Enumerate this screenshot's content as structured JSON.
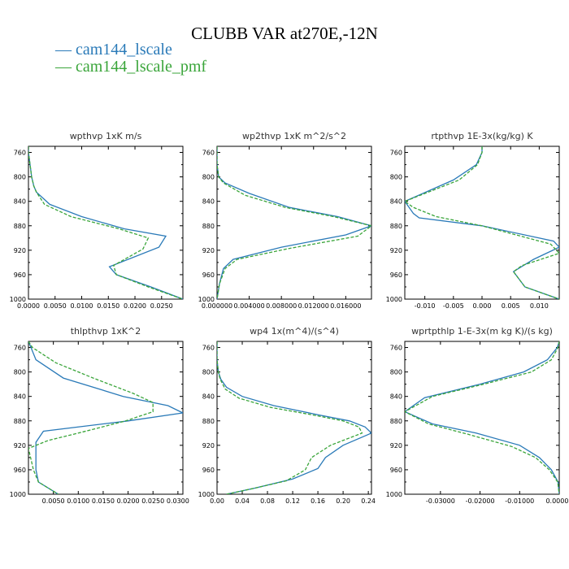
{
  "title": "CLUBB VAR at270E,-12N",
  "legend": [
    {
      "name": "cam144_lscale",
      "color": "#2a7ab8"
    },
    {
      "name": "cam144_lscale_pmf",
      "color": "#3aa53a"
    }
  ],
  "chart_data": [
    {
      "type": "line",
      "title": "wpthvp   1xK m/s",
      "ylim": [
        1000,
        750
      ],
      "yticks": [
        "760",
        "800",
        "840",
        "880",
        "920",
        "960",
        "1000"
      ],
      "xlim": [
        0.0,
        0.029
      ],
      "xticks": [
        "0.0000",
        "0.0050",
        "0.0100",
        "0.0150",
        "0.0200",
        "0.0250"
      ],
      "xtick_values": [
        0.0,
        0.005,
        0.01,
        0.015,
        0.02,
        0.025
      ],
      "series": [
        {
          "name": "cam144_lscale",
          "y": [
            750,
            760,
            780,
            800,
            815,
            825,
            845,
            865,
            885,
            897,
            915,
            947,
            960,
            980,
            1000
          ],
          "values": [
            0.0,
            0.0,
            0.0003,
            0.0006,
            0.001,
            0.0015,
            0.004,
            0.01,
            0.018,
            0.0258,
            0.0245,
            0.0152,
            0.0165,
            0.023,
            0.029
          ]
        },
        {
          "name": "cam144_lscale_pmf",
          "y": [
            750,
            760,
            780,
            800,
            815,
            825,
            845,
            865,
            885,
            900,
            918,
            945,
            960,
            980,
            1000
          ],
          "values": [
            0.0,
            0.0,
            0.0003,
            0.0006,
            0.001,
            0.0015,
            0.003,
            0.008,
            0.017,
            0.0225,
            0.0215,
            0.016,
            0.0165,
            0.0225,
            0.029
          ]
        }
      ]
    },
    {
      "type": "line",
      "title": "wp2thvp   1xK m^2/s^2",
      "ylim": [
        1000,
        750
      ],
      "yticks": [
        "760",
        "800",
        "840",
        "880",
        "920",
        "960",
        "1000"
      ],
      "xlim": [
        0.0,
        0.0192
      ],
      "xticks": [
        "0.000000",
        "0.004000",
        "0.008000",
        "0.012000",
        "0.016000"
      ],
      "xtick_values": [
        0.0,
        0.004,
        0.008,
        0.012,
        0.016
      ],
      "series": [
        {
          "name": "cam144_lscale",
          "y": [
            750,
            780,
            800,
            810,
            827,
            850,
            865,
            880,
            895,
            915,
            935,
            950,
            975,
            1000
          ],
          "values": [
            0.0,
            0.0,
            0.0002,
            0.001,
            0.004,
            0.009,
            0.015,
            0.0192,
            0.016,
            0.008,
            0.002,
            0.0008,
            0.0003,
            0.0
          ]
        },
        {
          "name": "cam144_lscale_pmf",
          "y": [
            750,
            780,
            800,
            810,
            830,
            850,
            865,
            880,
            897,
            917,
            935,
            950,
            975,
            1000
          ],
          "values": [
            0.0,
            0.0,
            0.0002,
            0.0008,
            0.0035,
            0.0085,
            0.0145,
            0.0192,
            0.0175,
            0.009,
            0.0025,
            0.001,
            0.0003,
            0.0
          ]
        }
      ]
    },
    {
      "type": "line",
      "title": "rtpthvp   1E-3x(kg/kg) K",
      "ylim": [
        1000,
        750
      ],
      "yticks": [
        "760",
        "800",
        "840",
        "880",
        "920",
        "960",
        "1000"
      ],
      "xlim": [
        -0.0135,
        0.0135
      ],
      "xticks": [
        "-0.010",
        "-0.005",
        "0.000",
        "0.005",
        "0.010"
      ],
      "xtick_values": [
        -0.01,
        -0.005,
        0.0,
        0.005,
        0.01
      ],
      "series": [
        {
          "name": "cam144_lscale",
          "y": [
            750,
            760,
            780,
            805,
            840,
            860,
            867,
            880,
            905,
            915,
            935,
            955,
            980,
            1000
          ],
          "values": [
            0.0,
            0.0,
            -0.001,
            -0.005,
            -0.0135,
            -0.012,
            -0.011,
            0.0,
            0.0125,
            0.0135,
            0.009,
            0.0055,
            0.0075,
            0.0135
          ]
        },
        {
          "name": "cam144_lscale_pmf",
          "y": [
            750,
            760,
            780,
            805,
            840,
            850,
            865,
            880,
            910,
            925,
            945,
            955,
            980,
            1000
          ],
          "values": [
            0.0,
            0.0,
            -0.0008,
            -0.004,
            -0.0135,
            -0.012,
            -0.008,
            0.0,
            0.012,
            0.0135,
            0.007,
            0.0055,
            0.0075,
            0.0135
          ]
        }
      ]
    },
    {
      "type": "line",
      "title": "thlpthvp   1xK^2",
      "ylim": [
        1000,
        750
      ],
      "yticks": [
        "760",
        "800",
        "840",
        "880",
        "920",
        "960",
        "1000"
      ],
      "xlim": [
        0.0,
        0.031
      ],
      "xticks": [
        "0.0050",
        "0.0100",
        "0.0150",
        "0.0200",
        "0.0250",
        "0.0300"
      ],
      "xtick_values": [
        0.005,
        0.01,
        0.015,
        0.02,
        0.025,
        0.03
      ],
      "series": [
        {
          "name": "cam144_lscale",
          "y": [
            750,
            760,
            780,
            810,
            840,
            855,
            867,
            880,
            897,
            915,
            930,
            960,
            980,
            1000
          ],
          "values": [
            0.0,
            0.0005,
            0.0015,
            0.007,
            0.019,
            0.028,
            0.031,
            0.02,
            0.003,
            0.0015,
            0.0015,
            0.0015,
            0.002,
            0.006
          ]
        },
        {
          "name": "cam144_lscale_pmf",
          "y": [
            750,
            760,
            785,
            810,
            835,
            850,
            865,
            880,
            900,
            912,
            925,
            960,
            980,
            1000
          ],
          "values": [
            0.0,
            0.0008,
            0.0055,
            0.013,
            0.021,
            0.025,
            0.025,
            0.0195,
            0.01,
            0.004,
            0.0,
            0.001,
            0.002,
            0.006
          ]
        }
      ]
    },
    {
      "type": "line",
      "title": "wp4   1x(m^4)/(s^4)",
      "ylim": [
        1000,
        750
      ],
      "yticks": [
        "760",
        "800",
        "840",
        "880",
        "920",
        "960",
        "1000"
      ],
      "xlim": [
        0.0,
        0.245
      ],
      "xticks": [
        "0.00",
        "0.04",
        "0.08",
        "0.12",
        "0.16",
        "0.20",
        "0.24"
      ],
      "xtick_values": [
        0.0,
        0.04,
        0.08,
        0.12,
        0.16,
        0.2,
        0.24
      ],
      "series": [
        {
          "name": "cam144_lscale",
          "y": [
            750,
            780,
            800,
            812,
            825,
            840,
            855,
            870,
            880,
            890,
            900,
            920,
            940,
            958,
            975,
            990,
            1000
          ],
          "values": [
            0.0,
            0.0,
            0.002,
            0.006,
            0.015,
            0.04,
            0.09,
            0.16,
            0.21,
            0.235,
            0.245,
            0.2,
            0.172,
            0.16,
            0.12,
            0.06,
            0.015
          ]
        },
        {
          "name": "cam144_lscale_pmf",
          "y": [
            750,
            780,
            800,
            812,
            828,
            843,
            858,
            870,
            880,
            890,
            900,
            920,
            940,
            960,
            978,
            990,
            1000
          ],
          "values": [
            0.0,
            0.0,
            0.002,
            0.005,
            0.013,
            0.035,
            0.085,
            0.15,
            0.2,
            0.225,
            0.23,
            0.18,
            0.15,
            0.14,
            0.11,
            0.06,
            0.015
          ]
        }
      ]
    },
    {
      "type": "line",
      "title": "wprtpthlp   1-E-3x(m kg K)/(s kg)",
      "ylim": [
        1000,
        750
      ],
      "yticks": [
        "760",
        "800",
        "840",
        "880",
        "920",
        "960",
        "1000"
      ],
      "xlim": [
        -0.039,
        0.0
      ],
      "xticks": [
        "-0.03000",
        "-0.02000",
        "-0.01000",
        "0.00000"
      ],
      "xtick_values": [
        -0.03,
        -0.02,
        -0.01,
        0.0
      ],
      "series": [
        {
          "name": "cam144_lscale",
          "y": [
            750,
            760,
            780,
            800,
            820,
            842,
            865,
            885,
            900,
            920,
            940,
            960,
            980,
            1000
          ],
          "values": [
            0.0,
            -0.0005,
            -0.003,
            -0.009,
            -0.02,
            -0.034,
            -0.039,
            -0.032,
            -0.021,
            -0.01,
            -0.005,
            -0.002,
            -0.0003,
            0.0
          ]
        },
        {
          "name": "cam144_lscale_pmf",
          "y": [
            750,
            760,
            780,
            800,
            820,
            840,
            865,
            885,
            902,
            922,
            940,
            960,
            980,
            1000
          ],
          "values": [
            0.0,
            -0.0003,
            -0.002,
            -0.007,
            -0.019,
            -0.032,
            -0.039,
            -0.033,
            -0.023,
            -0.012,
            -0.006,
            -0.0025,
            -0.0004,
            0.0
          ]
        }
      ]
    }
  ]
}
